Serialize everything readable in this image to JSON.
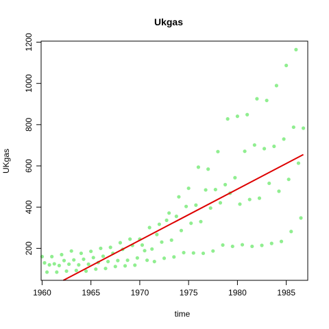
{
  "chart_data": {
    "type": "scatter",
    "title": "Ukgas",
    "xlabel": "time",
    "ylabel": "UKgas",
    "xlim": [
      1959.9,
      1987.2
    ],
    "ylim": [
      45,
      1205
    ],
    "x_ticks": [
      1960,
      1965,
      1970,
      1975,
      1980,
      1985
    ],
    "x_tick_labels": [
      "1960",
      "1965",
      "1970",
      "1975",
      "1980",
      "1985"
    ],
    "y_ticks": [
      200,
      400,
      600,
      800,
      1000,
      1200
    ],
    "y_tick_labels": [
      "200",
      "400",
      "600",
      "800",
      "1000",
      "1200"
    ],
    "grid": false,
    "point_color": "#90ee90",
    "line_color": "#dd0000",
    "series": [
      {
        "x": [
          1960.0,
          1960.25,
          1960.5,
          1960.75,
          1961.0,
          1961.25,
          1961.5,
          1961.75,
          1962.0,
          1962.25,
          1962.5,
          1962.75,
          1963.0,
          1963.25,
          1963.5,
          1963.75,
          1964.0,
          1964.25,
          1964.5,
          1964.75,
          1965.0,
          1965.25,
          1965.5,
          1965.75,
          1966.0,
          1966.25,
          1966.5,
          1966.75,
          1967.0,
          1967.25,
          1967.5,
          1967.75,
          1968.0,
          1968.25,
          1968.5,
          1968.75,
          1969.0,
          1969.25,
          1969.5,
          1969.75,
          1970.0,
          1970.25,
          1970.5,
          1970.75,
          1971.0,
          1971.25,
          1971.5,
          1971.75,
          1972.0,
          1972.25,
          1972.5,
          1972.75,
          1973.0,
          1973.25,
          1973.5,
          1973.75,
          1974.0,
          1974.25,
          1974.5,
          1974.75,
          1975.0,
          1975.25,
          1975.5,
          1975.75,
          1976.0,
          1976.25,
          1976.5,
          1976.75,
          1977.0,
          1977.25,
          1977.5,
          1977.75,
          1978.0,
          1978.25,
          1978.5,
          1978.75,
          1979.0,
          1979.25,
          1979.5,
          1979.75,
          1980.0,
          1980.25,
          1980.5,
          1980.75,
          1981.0,
          1981.25,
          1981.5,
          1981.75,
          1982.0,
          1982.25,
          1982.5,
          1982.75,
          1983.0,
          1983.25,
          1983.5,
          1983.75,
          1984.0,
          1984.25,
          1984.5,
          1984.75,
          1985.0,
          1985.25,
          1985.5,
          1985.75,
          1986.0,
          1986.25,
          1986.5,
          1986.75
        ],
        "y": [
          160.1,
          129.7,
          84.8,
          120.1,
          160.1,
          124.9,
          84.8,
          116.9,
          169.7,
          140.9,
          89.7,
          123.3,
          187.3,
          144.1,
          92.9,
          120.1,
          176.1,
          147.3,
          89.7,
          123.3,
          185.7,
          155.3,
          99.3,
          131.3,
          200.1,
          161.7,
          102.5,
          136.1,
          204.9,
          176.1,
          112.1,
          140.9,
          227.3,
          195.3,
          115.3,
          142.5,
          244.9,
          214.5,
          118.5,
          153.7,
          244.9,
          216.1,
          188.9,
          142.5,
          301.0,
          196.9,
          136.1,
          267.3,
          317.0,
          230.5,
          152.1,
          336.2,
          371.4,
          240.1,
          158.5,
          355.4,
          449.9,
          286.6,
          179.3,
          403.4,
          491.5,
          321.8,
          177.7,
          409.8,
          593.9,
          329.8,
          176.1,
          483.5,
          584.3,
          395.4,
          187.3,
          485.1,
          669.2,
          421.0,
          216.1,
          509.1,
          827.7,
          467.5,
          209.7,
          542.7,
          840.5,
          414.6,
          217.7,
          670.8,
          848.5,
          437.0,
          209.7,
          701.2,
          925.3,
          443.4,
          214.5,
          683.6,
          917.3,
          515.5,
          224.1,
          694.8,
          989.4,
          477.1,
          233.7,
          730.0,
          1087.0,
          534.7,
          281.8,
          787.6,
          1163.9,
          613.1,
          347.4,
          782.8
        ]
      }
    ],
    "trend_line": {
      "x": [
        1960.0,
        1986.75
      ],
      "y": [
        -9,
        655
      ]
    }
  }
}
